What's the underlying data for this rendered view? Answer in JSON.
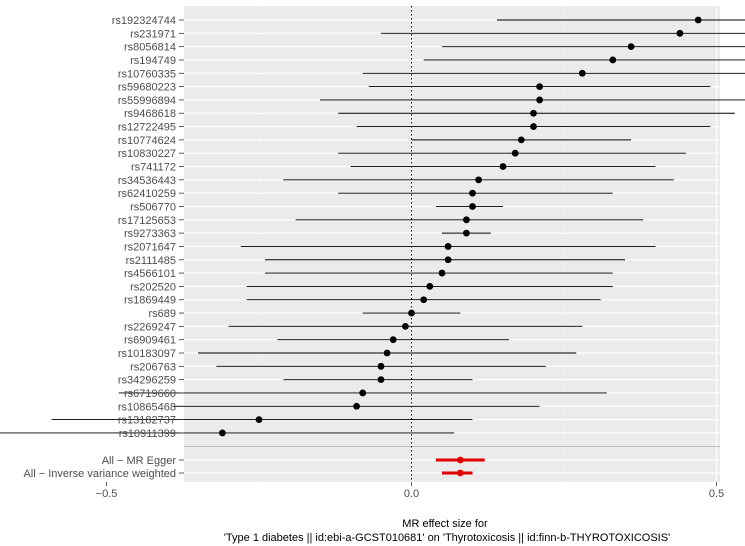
{
  "chart_data": {
    "type": "forest",
    "xlabel_line1": "MR effect size for",
    "xlabel_line2": "'Type 1 diabetes || id:ebi-a-GCST010681' on 'Thyrotoxicosis || id:finn-b-THYROTOXICOSIS'",
    "x_ticks": [
      -0.5,
      0.0,
      0.5,
      1.0
    ],
    "x_tick_labels": [
      "-0.5",
      "0.0",
      "0.5",
      "1.0"
    ],
    "xlim": [
      -0.77,
      1.0
    ],
    "reference_line": 0,
    "grid": true,
    "snps": [
      {
        "label": "rs192324744",
        "estimate": 0.47,
        "lower": 0.14,
        "upper": 0.8
      },
      {
        "label": "rs231971",
        "estimate": 0.44,
        "lower": -0.05,
        "upper": 0.93
      },
      {
        "label": "rs8056814",
        "estimate": 0.36,
        "lower": 0.05,
        "upper": 0.67
      },
      {
        "label": "rs194749",
        "estimate": 0.33,
        "lower": 0.02,
        "upper": 0.63
      },
      {
        "label": "rs10760335",
        "estimate": 0.28,
        "lower": -0.08,
        "upper": 0.64
      },
      {
        "label": "rs59680223",
        "estimate": 0.21,
        "lower": -0.07,
        "upper": 0.49
      },
      {
        "label": "rs55996894",
        "estimate": 0.21,
        "lower": -0.15,
        "upper": 0.57
      },
      {
        "label": "rs9468618",
        "estimate": 0.2,
        "lower": -0.12,
        "upper": 0.53
      },
      {
        "label": "rs12722495",
        "estimate": 0.2,
        "lower": -0.09,
        "upper": 0.49
      },
      {
        "label": "rs10774624",
        "estimate": 0.18,
        "lower": 0.0,
        "upper": 0.36
      },
      {
        "label": "rs10830227",
        "estimate": 0.17,
        "lower": -0.12,
        "upper": 0.45
      },
      {
        "label": "rs741172",
        "estimate": 0.15,
        "lower": -0.1,
        "upper": 0.4
      },
      {
        "label": "rs34536443",
        "estimate": 0.11,
        "lower": -0.21,
        "upper": 0.43
      },
      {
        "label": "rs62410259",
        "estimate": 0.1,
        "lower": -0.12,
        "upper": 0.33
      },
      {
        "label": "rs506770",
        "estimate": 0.1,
        "lower": 0.04,
        "upper": 0.15
      },
      {
        "label": "rs17125653",
        "estimate": 0.09,
        "lower": -0.19,
        "upper": 0.38
      },
      {
        "label": "rs9273363",
        "estimate": 0.09,
        "lower": 0.05,
        "upper": 0.13
      },
      {
        "label": "rs2071647",
        "estimate": 0.06,
        "lower": -0.28,
        "upper": 0.4
      },
      {
        "label": "rs2111485",
        "estimate": 0.06,
        "lower": -0.24,
        "upper": 0.35
      },
      {
        "label": "rs4566101",
        "estimate": 0.05,
        "lower": -0.24,
        "upper": 0.33
      },
      {
        "label": "rs202520",
        "estimate": 0.03,
        "lower": -0.27,
        "upper": 0.33
      },
      {
        "label": "rs1869449",
        "estimate": 0.02,
        "lower": -0.27,
        "upper": 0.31
      },
      {
        "label": "rs689",
        "estimate": 0.0,
        "lower": -0.08,
        "upper": 0.08
      },
      {
        "label": "rs2269247",
        "estimate": -0.01,
        "lower": -0.3,
        "upper": 0.28
      },
      {
        "label": "rs6909461",
        "estimate": -0.03,
        "lower": -0.22,
        "upper": 0.16
      },
      {
        "label": "rs10183097",
        "estimate": -0.04,
        "lower": -0.35,
        "upper": 0.27
      },
      {
        "label": "rs206763",
        "estimate": -0.05,
        "lower": -0.32,
        "upper": 0.22
      },
      {
        "label": "rs34296259",
        "estimate": -0.05,
        "lower": -0.21,
        "upper": 0.1
      },
      {
        "label": "rs6719660",
        "estimate": -0.08,
        "lower": -0.48,
        "upper": 0.32
      },
      {
        "label": "rs10865468",
        "estimate": -0.09,
        "lower": -0.39,
        "upper": 0.21
      },
      {
        "label": "rs13182737",
        "estimate": -0.25,
        "lower": -0.59,
        "upper": 0.1
      },
      {
        "label": "rs10911399",
        "estimate": -0.31,
        "lower": -0.68,
        "upper": 0.07
      }
    ],
    "summary": [
      {
        "label": "All − MR Egger",
        "estimate": 0.08,
        "lower": 0.04,
        "upper": 0.12
      },
      {
        "label": "All − Inverse variance weighted",
        "estimate": 0.08,
        "lower": 0.05,
        "upper": 0.1
      }
    ],
    "colors": {
      "panel_bg": "#ebebeb",
      "grid_major": "#ffffff",
      "grid_minor": "#f5f5f5",
      "point": "#000000",
      "summary": "#e00000",
      "divider": "#bdbdbd"
    }
  }
}
